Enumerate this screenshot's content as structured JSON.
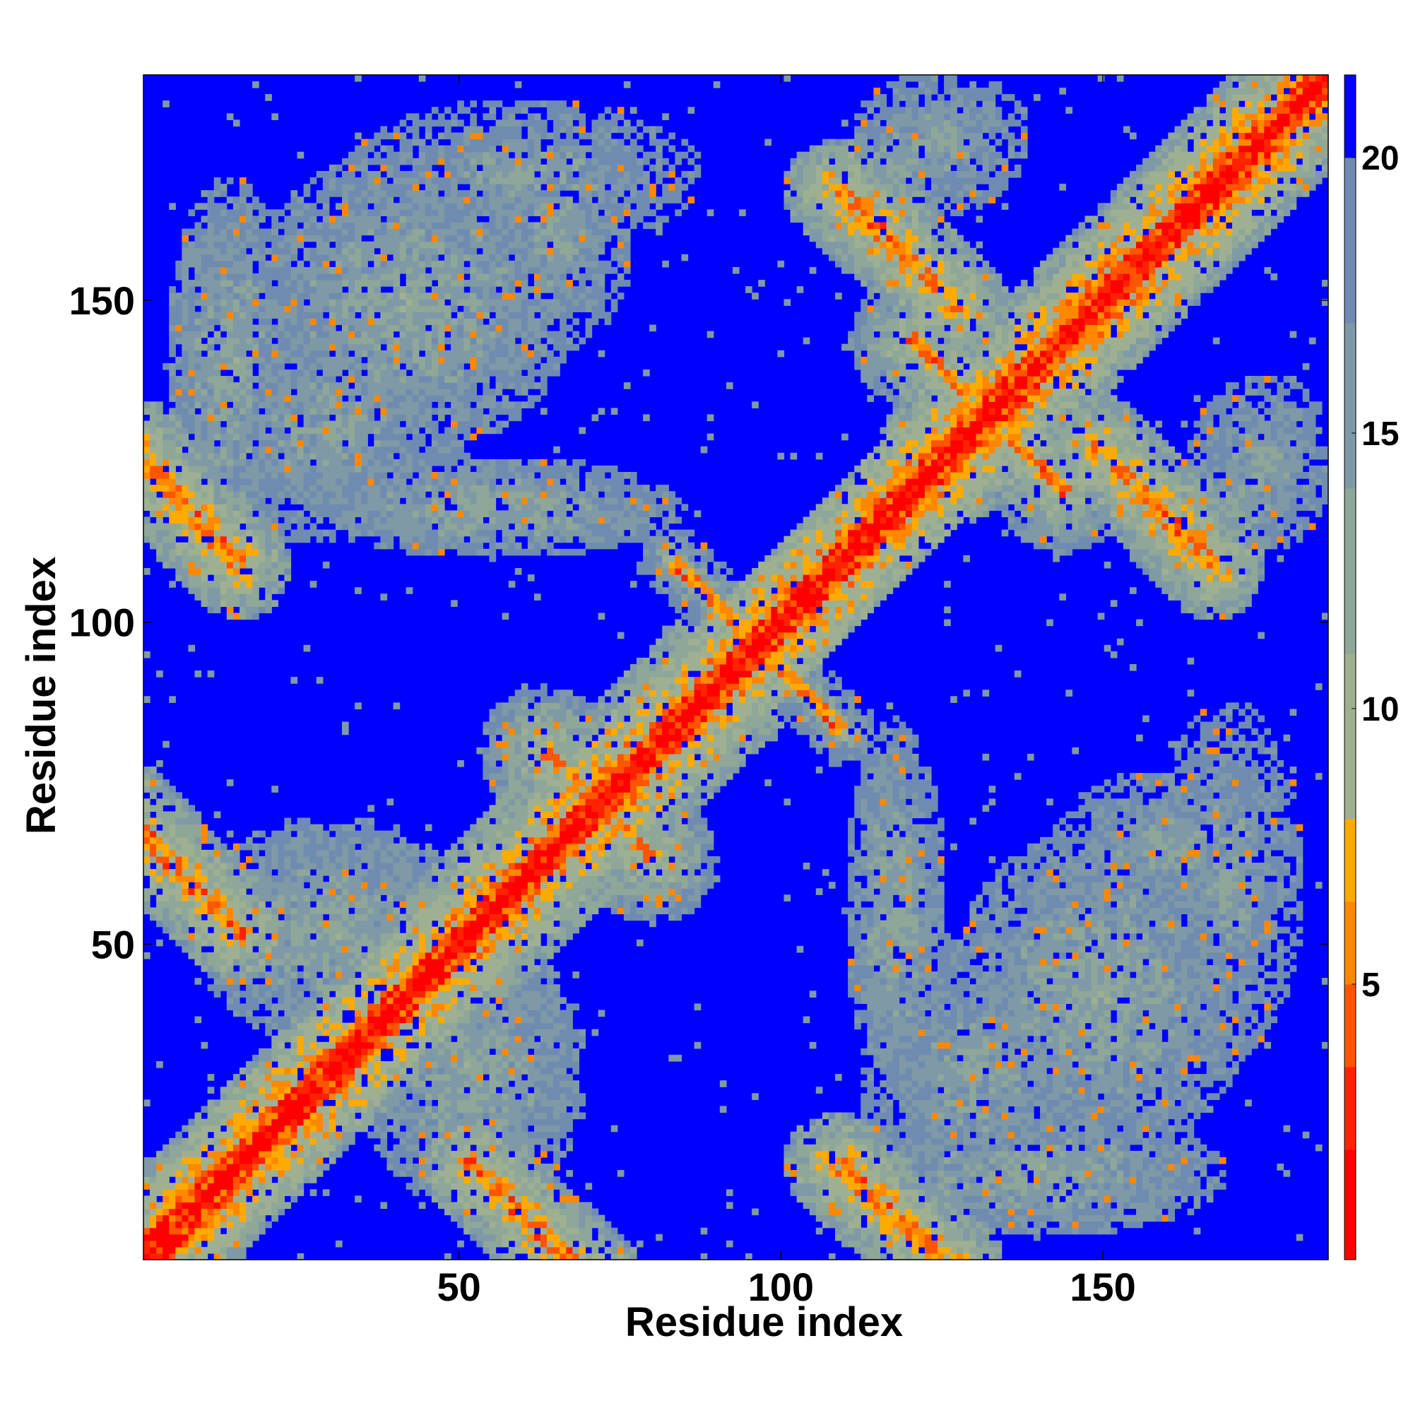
{
  "chart_data": {
    "type": "heatmap",
    "title": "",
    "xlabel": "Residue index",
    "ylabel": "Residue index",
    "n_residues": 185,
    "xlim": [
      1,
      185
    ],
    "ylim": [
      1,
      185
    ],
    "x_ticks": [
      50,
      100,
      150
    ],
    "x_tick_labels": [
      "50",
      "100",
      "150"
    ],
    "y_ticks": [
      50,
      100,
      150
    ],
    "y_tick_labels": [
      "50",
      "100",
      "150"
    ],
    "grid": false,
    "symmetric": true,
    "colorbar": {
      "position": "right",
      "range": [
        0,
        21.5
      ],
      "ticks": [
        5,
        10,
        15,
        20
      ],
      "tick_labels": [
        "5",
        "10",
        "15",
        "20"
      ],
      "colors_low_to_high": [
        "#ff0000",
        "#ff2200",
        "#ff5500",
        "#ff8800",
        "#ffaa00",
        "#9fb092",
        "#8fa798",
        "#7f99a6",
        "#6f8cb0",
        "#0000ff"
      ],
      "stops": [
        0,
        2,
        3.5,
        5,
        6.5,
        8,
        11,
        14,
        17,
        20
      ]
    },
    "background_value": 21,
    "features": [
      {
        "kind": "diagonal",
        "from": 1,
        "to": 185,
        "half_width": 12,
        "value": 4
      },
      {
        "kind": "diagonal",
        "from": 1,
        "to": 36,
        "half_width": 14,
        "value": 7
      },
      {
        "kind": "diagonal",
        "from": 40,
        "to": 90,
        "half_width": 16,
        "value": 7
      },
      {
        "kind": "diagonal",
        "from": 125,
        "to": 185,
        "half_width": 15,
        "value": 7
      },
      {
        "kind": "antidiagonal",
        "x": [
          1,
          12
        ],
        "y": [
          124,
          112
        ],
        "half_width": 8,
        "value": 7
      },
      {
        "kind": "antidiagonal",
        "x": [
          1,
          12
        ],
        "y": [
          66,
          55
        ],
        "half_width": 8,
        "value": 7
      },
      {
        "kind": "antidiagonal",
        "x": [
          55,
          67
        ],
        "y": [
          12,
          1
        ],
        "half_width": 8,
        "value": 7
      },
      {
        "kind": "antidiagonal",
        "x": [
          113,
          125
        ],
        "y": [
          12,
          1
        ],
        "half_width": 8,
        "value": 7
      },
      {
        "kind": "antidiagonal",
        "x": [
          113,
          124
        ],
        "y": [
          164,
          153
        ],
        "half_width": 8,
        "value": 7
      },
      {
        "kind": "antidiagonal",
        "x": [
          153,
          164
        ],
        "y": [
          124,
          112
        ],
        "half_width": 8,
        "value": 7
      },
      {
        "kind": "antidiagonal",
        "x": [
          66,
          76
        ],
        "y": [
          77,
          67
        ],
        "half_width": 10,
        "value": 9
      },
      {
        "kind": "antidiagonal",
        "x": [
          88,
          105
        ],
        "y": [
          105,
          88
        ],
        "half_width": 6,
        "value": 12
      },
      {
        "kind": "antidiagonal",
        "x": [
          125,
          139
        ],
        "y": [
          140,
          126
        ],
        "half_width": 10,
        "value": 9
      },
      {
        "kind": "blob",
        "x": 30,
        "y": 52,
        "rx": 22,
        "ry": 18,
        "value": 13
      },
      {
        "kind": "blob",
        "x": 52,
        "y": 30,
        "rx": 18,
        "ry": 22,
        "value": 13
      },
      {
        "kind": "blob",
        "x": 42,
        "y": 150,
        "rx": 26,
        "ry": 24,
        "value": 13
      },
      {
        "kind": "blob",
        "x": 150,
        "y": 42,
        "rx": 24,
        "ry": 26,
        "value": 13
      },
      {
        "kind": "blob",
        "x": 14,
        "y": 140,
        "rx": 10,
        "ry": 30,
        "value": 13
      },
      {
        "kind": "blob",
        "x": 140,
        "y": 14,
        "rx": 30,
        "ry": 10,
        "value": 13
      },
      {
        "kind": "blob",
        "x": 60,
        "y": 170,
        "rx": 28,
        "ry": 12,
        "value": 14
      },
      {
        "kind": "blob",
        "x": 170,
        "y": 60,
        "rx": 12,
        "ry": 28,
        "value": 14
      },
      {
        "kind": "blob",
        "x": 55,
        "y": 118,
        "rx": 30,
        "ry": 8,
        "value": 13
      },
      {
        "kind": "blob",
        "x": 118,
        "y": 55,
        "rx": 8,
        "ry": 30,
        "value": 13
      },
      {
        "kind": "blob",
        "x": 130,
        "y": 30,
        "rx": 18,
        "ry": 22,
        "value": 14
      },
      {
        "kind": "blob",
        "x": 30,
        "y": 130,
        "rx": 22,
        "ry": 18,
        "value": 14
      },
      {
        "kind": "blob",
        "x": 168,
        "y": 118,
        "rx": 14,
        "ry": 8,
        "value": 13
      },
      {
        "kind": "blob",
        "x": 118,
        "y": 168,
        "rx": 8,
        "ry": 14,
        "value": 13
      },
      {
        "kind": "blob",
        "x": 125,
        "y": 175,
        "rx": 14,
        "ry": 12,
        "value": 14
      },
      {
        "kind": "blob",
        "x": 175,
        "y": 125,
        "rx": 12,
        "ry": 14,
        "value": 14
      },
      {
        "kind": "blob",
        "x": 160,
        "y": 65,
        "rx": 18,
        "ry": 12,
        "value": 14
      },
      {
        "kind": "blob",
        "x": 65,
        "y": 160,
        "rx": 12,
        "ry": 18,
        "value": 14
      }
    ]
  }
}
